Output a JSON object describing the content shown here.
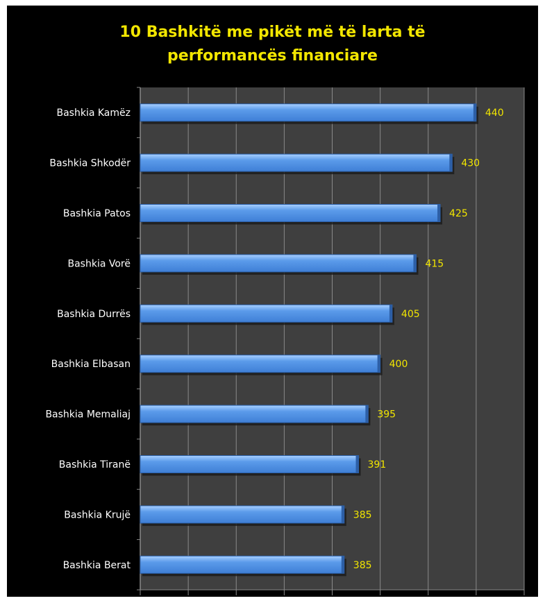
{
  "colors": {
    "background": "#000000",
    "plot_area": "#3f3f3f",
    "gridline": "#8a8a8a",
    "bar": "#3f7fd6",
    "title": "#f2e600",
    "category_label": "#ffffff",
    "value_label": "#f2e600"
  },
  "chart_data": {
    "type": "bar",
    "orientation": "horizontal",
    "title": "10 Bashkitë me pikët më të larta të performancës financiare",
    "title_lines": [
      "10 Bashkitë me pikët më të larta të",
      "performancës financiare"
    ],
    "xlabel": "",
    "ylabel": "",
    "categories": [
      "Bashkia Kamëz",
      "Bashkia Shkodër",
      "Bashkia Patos",
      "Bashkia Vorë",
      "Bashkia Durrës",
      "Bashkia Elbasan",
      "Bashkia Memaliaj",
      "Bashkia Tiranë",
      "Bashkia Krujë",
      "Bashkia Berat"
    ],
    "values": [
      440,
      430,
      425,
      415,
      405,
      400,
      395,
      391,
      385,
      385
    ],
    "value_labels": [
      "440",
      "430",
      "425",
      "415",
      "405",
      "400",
      "395",
      "391",
      "385",
      "385"
    ],
    "xlim": [
      300,
      460
    ],
    "x_grid_step": 20,
    "grid": true,
    "legend": "none"
  }
}
